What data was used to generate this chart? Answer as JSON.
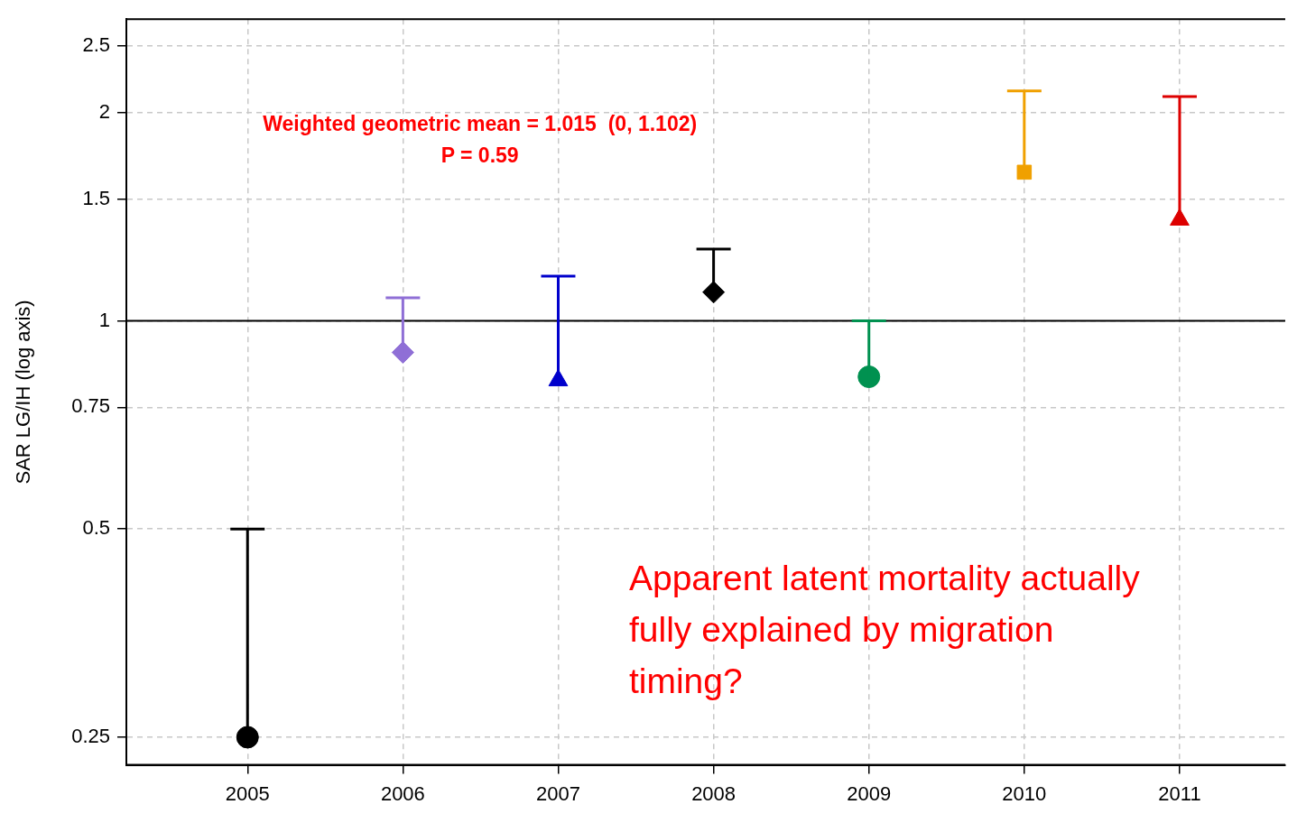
{
  "chart_data": {
    "type": "scatter",
    "ylabel": "SAR LG/IH (log axis)",
    "log": "y",
    "grid": true,
    "legend": false,
    "xlim": [
      2004.22,
      2011.68
    ],
    "xticks": [
      2005,
      2006,
      2007,
      2008,
      2009,
      2010,
      2011
    ],
    "ylim": [
      0.228,
      2.73
    ],
    "yticks": [
      0.25,
      0.5,
      0.75,
      1,
      1.5,
      2,
      2.5
    ],
    "ref_lines": [
      {
        "axis": "y",
        "value": 1,
        "color": "#000000",
        "line_style": "solid"
      }
    ],
    "annotations": [
      "Weighted geometric mean = 1.015  (0, 1.102)",
      "P = 0.59",
      "Apparent latent mortality actually fully explained by migration timing?"
    ],
    "series": [
      {
        "x": [
          2005
        ],
        "values": [
          0.25
        ],
        "errors": [
          [
            0.25,
            0.5
          ]
        ],
        "color": "#000000",
        "marker": "circle"
      },
      {
        "x": [
          2006
        ],
        "values": [
          0.9
        ],
        "errors": [
          [
            0.9,
            1.08
          ]
        ],
        "color": "#8f6fd6",
        "marker": "diamond"
      },
      {
        "x": [
          2007
        ],
        "values": [
          0.82
        ],
        "errors": [
          [
            0.82,
            1.16
          ]
        ],
        "color": "#0000cc",
        "marker": "triangle"
      },
      {
        "x": [
          2008
        ],
        "values": [
          1.1
        ],
        "errors": [
          [
            1.1,
            1.27
          ]
        ],
        "color": "#000000",
        "marker": "diamond"
      },
      {
        "x": [
          2009
        ],
        "values": [
          0.83
        ],
        "errors": [
          [
            0.83,
            1.0
          ]
        ],
        "color": "#009150",
        "marker": "circle"
      },
      {
        "x": [
          2010
        ],
        "values": [
          1.64
        ],
        "errors": [
          [
            1.64,
            2.15
          ]
        ],
        "color": "#f0a000",
        "marker": "square"
      },
      {
        "x": [
          2011
        ],
        "values": [
          1.4
        ],
        "errors": [
          [
            1.4,
            2.11
          ]
        ],
        "color": "#dd0000",
        "marker": "triangle"
      }
    ]
  }
}
